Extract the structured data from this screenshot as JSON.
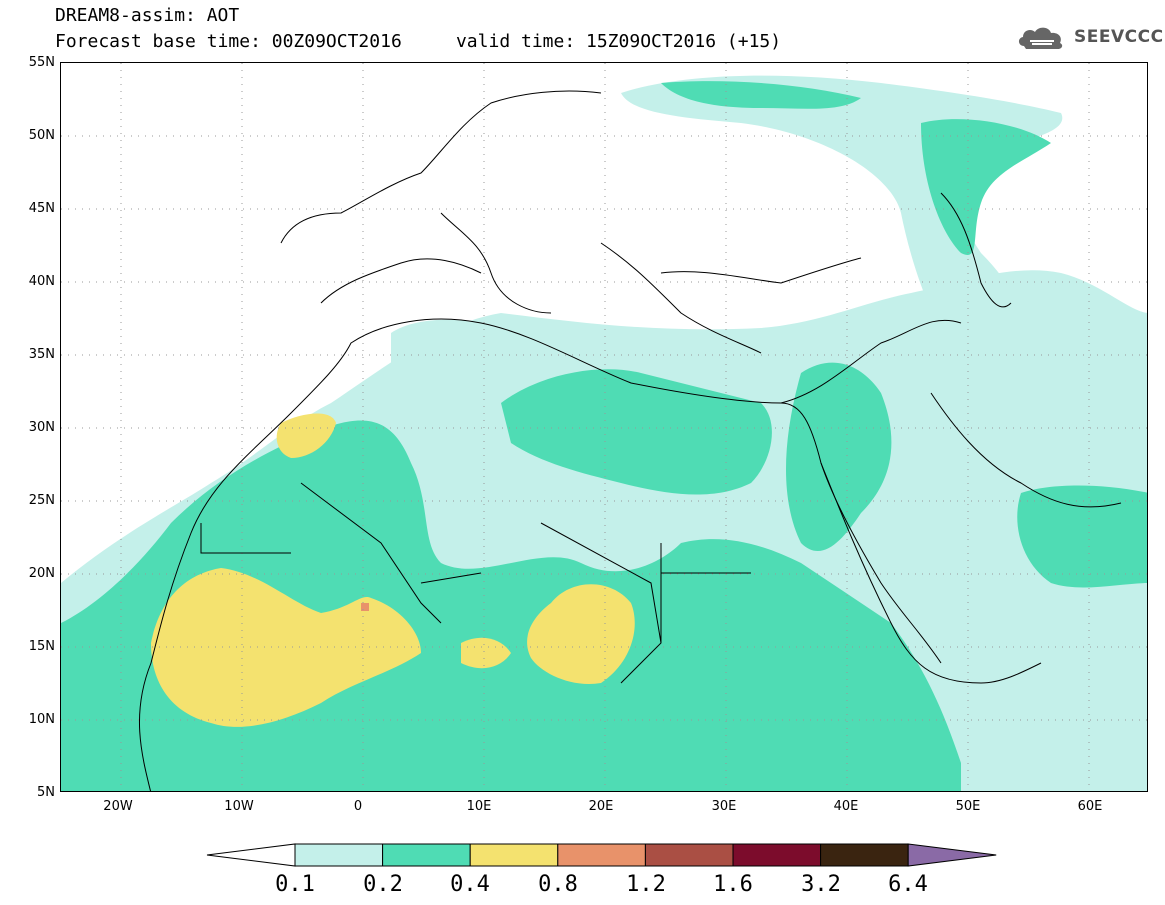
{
  "header": {
    "title": "DREAM8-assim: AOT",
    "subtitle": "Forecast base time: 00Z09OCT2016     valid time: 15Z09OCT2016 (+15)"
  },
  "logo": {
    "text": "SEEVCCC",
    "icon": "cloud-logo-icon"
  },
  "map": {
    "lat_labels": [
      "55N",
      "50N",
      "45N",
      "40N",
      "35N",
      "30N",
      "25N",
      "20N",
      "15N",
      "10N",
      "5N"
    ],
    "lon_labels": [
      "20W",
      "10W",
      "0",
      "10E",
      "20E",
      "30E",
      "40E",
      "50E",
      "60E"
    ],
    "lon_range": [
      -25,
      65
    ],
    "lat_range": [
      5,
      55
    ]
  },
  "colorbar": {
    "labels": [
      "0.1",
      "0.2",
      "0.4",
      "0.8",
      "1.2",
      "1.6",
      "3.2",
      "6.4"
    ],
    "colors": [
      "#ffffff",
      "#c4f0ea",
      "#4fdcb4",
      "#f4e26f",
      "#e8926a",
      "#aa4f44",
      "#7c0c2c",
      "#3a2410",
      "#8a6aa6"
    ]
  }
}
